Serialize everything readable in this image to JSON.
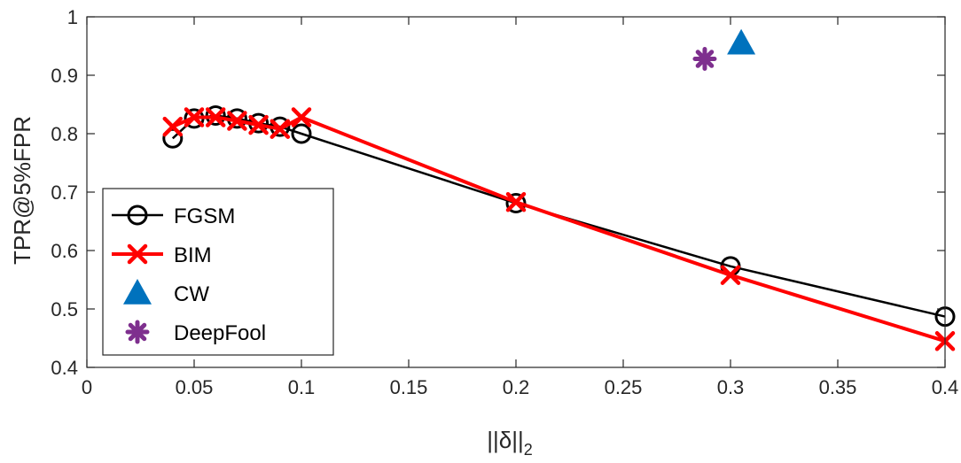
{
  "chart_data": {
    "type": "line",
    "title": "",
    "xlabel": "||δ||",
    "xlabel_sub": "2",
    "ylabel": "TPR@5%FPR",
    "xlim": [
      0,
      0.4
    ],
    "ylim": [
      0.4,
      1.0
    ],
    "xticks": [
      0,
      0.05,
      0.1,
      0.15,
      0.2,
      0.25,
      0.3,
      0.35,
      0.4
    ],
    "xtick_labels": [
      "0",
      "0.05",
      "0.1",
      "0.15",
      "0.2",
      "0.25",
      "0.3",
      "0.35",
      "0.4"
    ],
    "yticks": [
      0.4,
      0.5,
      0.6,
      0.7,
      0.8,
      0.9,
      1.0
    ],
    "ytick_labels": [
      "0.4",
      "0.5",
      "0.6",
      "0.7",
      "0.8",
      "0.9",
      "1"
    ],
    "grid": false,
    "legend_position": "bottom-left",
    "series": [
      {
        "name": "FGSM",
        "color": "#000000",
        "marker": "circle",
        "line": true,
        "x": [
          0.04,
          0.05,
          0.06,
          0.07,
          0.08,
          0.09,
          0.1,
          0.2,
          0.3,
          0.4
        ],
        "y": [
          0.792,
          0.826,
          0.831,
          0.826,
          0.818,
          0.812,
          0.8,
          0.681,
          0.573,
          0.487
        ]
      },
      {
        "name": "BIM",
        "color": "#ff0000",
        "marker": "x",
        "line": true,
        "x": [
          0.04,
          0.05,
          0.06,
          0.07,
          0.08,
          0.09,
          0.1,
          0.2,
          0.3,
          0.4
        ],
        "y": [
          0.812,
          0.828,
          0.828,
          0.822,
          0.815,
          0.808,
          0.828,
          0.683,
          0.558,
          0.445
        ]
      },
      {
        "name": "CW",
        "color": "#0072bd",
        "marker": "triangle",
        "line": false,
        "x": [
          0.305
        ],
        "y": [
          0.955
        ]
      },
      {
        "name": "DeepFool",
        "color": "#7e2f8e",
        "marker": "asterisk",
        "line": false,
        "x": [
          0.288
        ],
        "y": [
          0.928
        ]
      }
    ]
  }
}
